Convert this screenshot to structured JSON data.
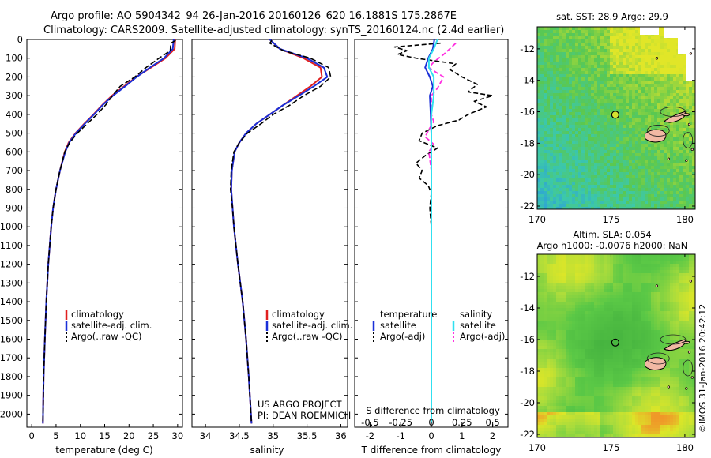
{
  "title": {
    "line1": "Argo profile: AO 5904342_94 26-Jan-2016 20160126_620 16.1881S 175.2867E",
    "line2": "Climatology: CARS2009. Satellite-adjusted climatology: synTS_20160124.nc (2.4d earlier)"
  },
  "credit": {
    "project": "US ARGO PROJECT",
    "pi": "PI: DEAN ROEMMICH",
    "imos": "©IMOS 31-Jan-2016 20:42:12"
  },
  "colors": {
    "climatology": "#e02020",
    "satellite": "#1a2fd8",
    "argo": "#000000",
    "sat_salinity": "#30e0f0",
    "argo_salinity": "#ff30e0"
  },
  "chart_data": [
    {
      "type": "line",
      "id": "temperature",
      "xlabel": "temperature (deg C)",
      "ylabel": "",
      "xlim": [
        -1,
        31
      ],
      "ylim": [
        2070,
        0
      ],
      "xticks": [
        0,
        5,
        10,
        15,
        20,
        25,
        30
      ],
      "yticks": [
        0,
        100,
        200,
        300,
        400,
        500,
        600,
        700,
        800,
        900,
        1000,
        1100,
        1200,
        1300,
        1400,
        1500,
        1600,
        1700,
        1800,
        1900,
        2000
      ],
      "legend": [
        "climatology",
        "satellite-adj. clim.",
        "Argo(..raw -QC)"
      ],
      "series": [
        {
          "name": "climatology",
          "depth": [
            0,
            50,
            100,
            150,
            200,
            250,
            300,
            350,
            400,
            450,
            500,
            550,
            600,
            700,
            800,
            900,
            1000,
            1200,
            1400,
            1600,
            1800,
            2050
          ],
          "values": [
            29.5,
            29.4,
            27.5,
            24.5,
            21.5,
            19,
            16.5,
            14.5,
            12.7,
            10.8,
            9.0,
            7.6,
            6.8,
            5.8,
            5.0,
            4.4,
            4.0,
            3.4,
            3.0,
            2.7,
            2.45,
            2.3
          ]
        },
        {
          "name": "satellite-adj. clim.",
          "depth": [
            0,
            50,
            100,
            150,
            200,
            250,
            300,
            350,
            400,
            450,
            500,
            550,
            600,
            700,
            800,
            900,
            1000,
            1200,
            1400,
            1600,
            1800,
            2050
          ],
          "values": [
            29.2,
            29.0,
            27.2,
            24.3,
            21.6,
            19.2,
            16.7,
            14.6,
            12.8,
            10.9,
            9.1,
            7.7,
            6.9,
            5.8,
            5.0,
            4.4,
            4.0,
            3.4,
            3.0,
            2.7,
            2.45,
            2.3
          ]
        },
        {
          "name": "Argo(..raw -QC)",
          "depth": [
            5,
            20,
            60,
            100,
            150,
            200,
            250,
            300,
            350,
            400,
            450,
            500,
            550,
            600,
            700,
            800,
            900,
            1000,
            1200,
            1400,
            1600,
            1800,
            2050
          ],
          "values": [
            29.6,
            28.6,
            28.5,
            26.2,
            23.5,
            21.2,
            18.2,
            16.6,
            15.2,
            13.4,
            11.4,
            9.4,
            7.8,
            6.8,
            5.8,
            5.0,
            4.4,
            4.0,
            3.4,
            3.0,
            2.7,
            2.45,
            2.3
          ]
        }
      ]
    },
    {
      "type": "line",
      "id": "salinity",
      "xlabel": "salinity",
      "xlim": [
        33.8,
        36.1
      ],
      "ylim": [
        2070,
        0
      ],
      "xticks": [
        34,
        34.5,
        35,
        35.5,
        36
      ],
      "legend": [
        "climatology",
        "satellite-adj. clim.",
        "Argo(..raw -QC)"
      ],
      "series": [
        {
          "name": "climatology",
          "depth": [
            0,
            50,
            100,
            150,
            200,
            250,
            300,
            350,
            400,
            450,
            500,
            550,
            600,
            700,
            800,
            900,
            1000,
            1200,
            1400,
            1600,
            1800,
            2050
          ],
          "values": [
            34.95,
            35.1,
            35.45,
            35.7,
            35.72,
            35.55,
            35.35,
            35.15,
            34.95,
            34.75,
            34.6,
            34.5,
            34.43,
            34.39,
            34.38,
            34.4,
            34.42,
            34.48,
            34.55,
            34.6,
            34.64,
            34.68
          ]
        },
        {
          "name": "satellite-adj. clim.",
          "depth": [
            0,
            50,
            100,
            150,
            200,
            250,
            300,
            350,
            400,
            450,
            500,
            550,
            600,
            700,
            800,
            900,
            1000,
            1200,
            1400,
            1600,
            1800,
            2050
          ],
          "values": [
            34.95,
            35.1,
            35.5,
            35.75,
            35.8,
            35.6,
            35.38,
            35.15,
            34.95,
            34.75,
            34.6,
            34.5,
            34.43,
            34.39,
            34.38,
            34.4,
            34.42,
            34.48,
            34.55,
            34.6,
            34.64,
            34.68
          ]
        },
        {
          "name": "Argo(..raw -QC)",
          "depth": [
            5,
            20,
            60,
            100,
            150,
            200,
            250,
            300,
            350,
            400,
            450,
            500,
            550,
            600,
            700,
            800,
            900,
            1000,
            1200,
            1400,
            1600,
            1800,
            2050
          ],
          "values": [
            34.98,
            34.95,
            35.15,
            35.55,
            35.82,
            35.85,
            35.7,
            35.45,
            35.25,
            35.0,
            34.82,
            34.62,
            34.5,
            34.42,
            34.38,
            34.37,
            34.4,
            34.42,
            34.48,
            34.55,
            34.6,
            34.64,
            34.68
          ]
        }
      ]
    },
    {
      "type": "line",
      "id": "difference",
      "xlabel": "T difference from climatology",
      "top_label": "S difference from climatology",
      "xlim": [
        -2.5,
        2.5
      ],
      "ylim": [
        2070,
        0
      ],
      "xticks": [
        -2,
        -1,
        0,
        1,
        2
      ],
      "sticks": [
        -0.5,
        -0.25,
        0,
        0.25,
        0.5
      ],
      "s_scale_factor": 4,
      "legend_temperature": [
        "temperature",
        "satellite",
        "Argo(-adj)"
      ],
      "legend_salinity": [
        "salinity",
        "satellite",
        "Argo(-adj)"
      ],
      "series": [
        {
          "name": "T satellite",
          "depth": [
            0,
            50,
            100,
            150,
            200,
            250,
            300,
            400,
            500,
            600,
            800,
            1000,
            1500,
            2050
          ],
          "values": [
            0.1,
            0.05,
            -0.1,
            -0.2,
            -0.05,
            0.05,
            -0.05,
            -0.02,
            0.0,
            0.0,
            0.0,
            0.0,
            0.0,
            0.0
          ]
        },
        {
          "name": "T Argo(-adj)",
          "depth": [
            20,
            40,
            60,
            80,
            100,
            130,
            160,
            200,
            240,
            280,
            300,
            330,
            360,
            400,
            430,
            460,
            500,
            540,
            580,
            620,
            660,
            700,
            740,
            780,
            820,
            900,
            1000,
            1500,
            2050
          ],
          "values": [
            0.3,
            -1.2,
            -0.8,
            -1.1,
            -0.5,
            0.8,
            0.6,
            1.0,
            1.5,
            1.2,
            2.0,
            1.4,
            1.8,
            1.2,
            0.9,
            0.2,
            -0.3,
            -0.4,
            0.2,
            -0.2,
            -0.5,
            -0.3,
            -0.4,
            -0.1,
            0.0,
            -0.05,
            0.0,
            0.0,
            0.0
          ]
        },
        {
          "name": "S satellite",
          "depth": [
            0,
            50,
            100,
            150,
            200,
            300,
            400,
            500,
            600,
            800,
            1000,
            1500,
            2050
          ],
          "values": [
            0.05,
            0.02,
            -0.02,
            -0.02,
            0.02,
            0.02,
            0.0,
            0.0,
            0.0,
            0.0,
            0.0,
            0.0,
            0.0
          ]
        },
        {
          "name": "S Argo(-adj)",
          "depth": [
            20,
            50,
            80,
            120,
            150,
            180,
            200,
            260,
            300,
            340,
            400,
            440,
            480,
            520,
            560,
            600,
            700,
            800,
            1000,
            1500,
            2050
          ],
          "values": [
            0.2,
            0.15,
            0.1,
            0.02,
            -0.02,
            0.05,
            0.1,
            0.05,
            0.0,
            0.0,
            0.0,
            0.02,
            -0.02,
            -0.05,
            0.02,
            -0.02,
            0.0,
            0.0,
            0.0,
            0.0,
            0.0
          ]
        }
      ]
    },
    {
      "type": "heatmap",
      "id": "sst-map",
      "title": "sat. SST: 28.9 Argo: 29.9",
      "xlim": [
        170,
        180.7
      ],
      "ylim": [
        -22.2,
        -10.6
      ],
      "xticks": [
        170,
        175,
        180
      ],
      "yticks": [
        -12,
        -14,
        -16,
        -18,
        -20,
        -22
      ],
      "argo_position": [
        175.29,
        -16.19
      ]
    },
    {
      "type": "heatmap",
      "id": "sla-map",
      "title": "Altim. SLA: 0.054",
      "subtitle": "Argo h1000: -0.0076 h2000: NaN",
      "xlim": [
        170,
        180.7
      ],
      "ylim": [
        -22.2,
        -10.6
      ],
      "xticks": [
        170,
        175,
        180
      ],
      "yticks": [
        -12,
        -14,
        -16,
        -18,
        -20,
        -22
      ],
      "argo_position": [
        175.29,
        -16.19
      ]
    }
  ]
}
